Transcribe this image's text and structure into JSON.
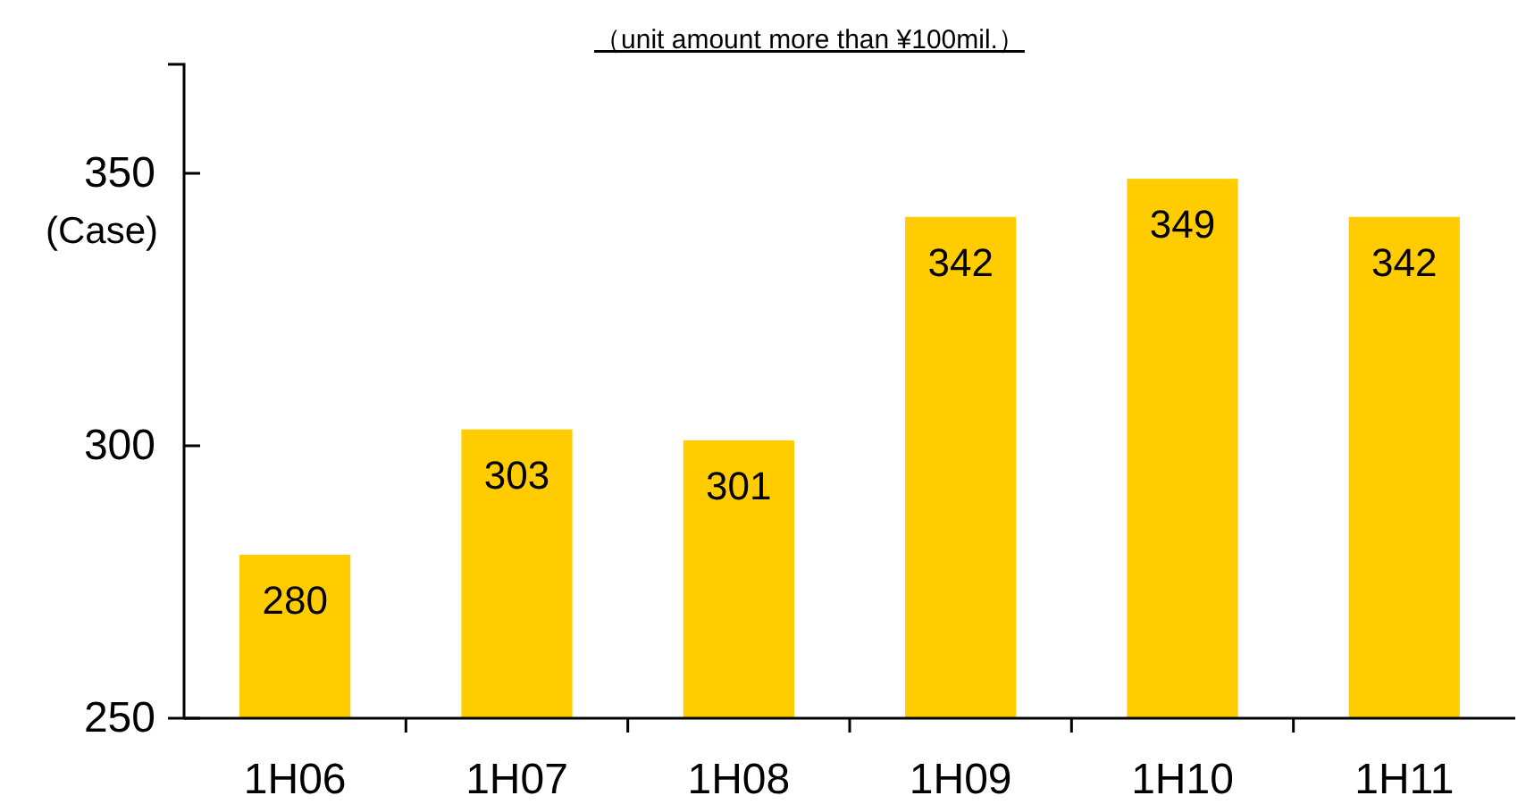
{
  "chart_data": {
    "type": "bar",
    "subtitle": "（unit amount more than ¥100mil.）",
    "ylabel": "(Case)",
    "categories": [
      "1H06",
      "1H07",
      "1H08",
      "1H09",
      "1H10",
      "1H11"
    ],
    "values": [
      280,
      303,
      301,
      342,
      349,
      342
    ],
    "color": "#ffcc00",
    "ylim": [
      250,
      370
    ],
    "yticks": [
      250,
      300,
      350
    ],
    "data_labels": true
  }
}
